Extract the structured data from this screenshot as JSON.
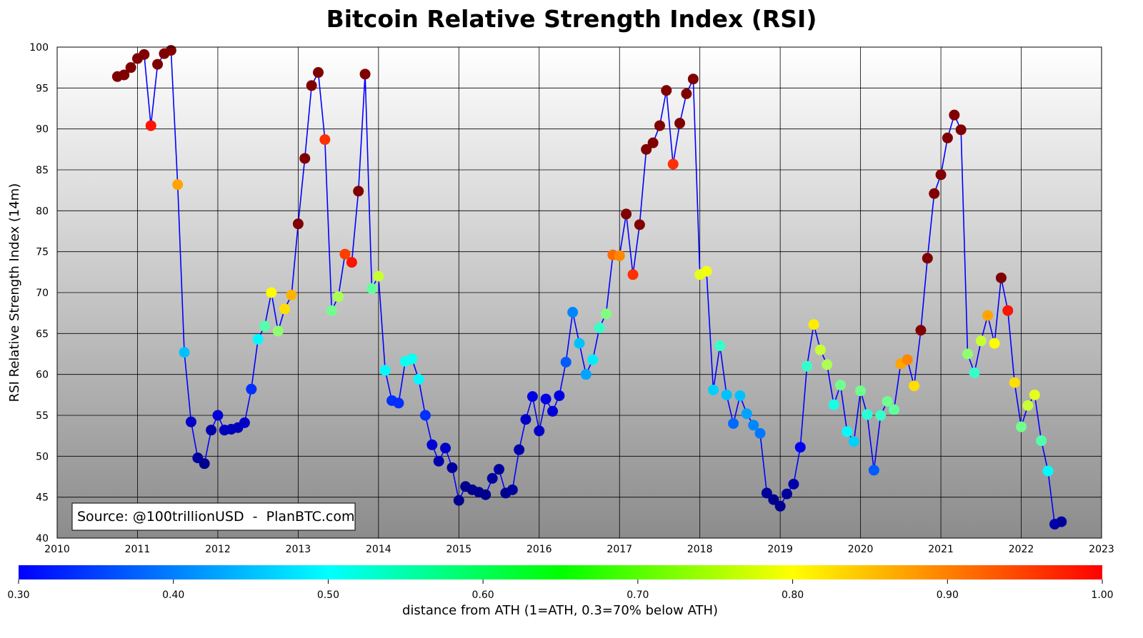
{
  "chart_data": {
    "type": "scatter",
    "title": "Bitcoin Relative Strength Index (RSI)",
    "ylabel": "RSI Relative Strength Index (14m)",
    "xlabel": "",
    "xlim": [
      2010,
      2023
    ],
    "ylim": [
      40,
      100
    ],
    "x_ticks": [
      "2010",
      "2011",
      "2012",
      "2013",
      "2014",
      "2015",
      "2016",
      "2017",
      "2018",
      "2019",
      "2020",
      "2021",
      "2022",
      "2023"
    ],
    "y_ticks": [
      "40",
      "45",
      "50",
      "55",
      "60",
      "65",
      "70",
      "75",
      "80",
      "85",
      "90",
      "95",
      "100"
    ],
    "grid": true,
    "line_color": "#0000ff",
    "annotation": "Source: @100trillionUSD  -  PlanBTC.com",
    "colorbar": {
      "label": "distance from ATH (1=ATH, 0.3=70% below ATH)",
      "range": [
        0.3,
        1.0
      ],
      "ticks": [
        "0.30",
        "0.40",
        "0.50",
        "0.60",
        "0.70",
        "0.80",
        "0.90",
        "1.00"
      ],
      "colormap": "jet"
    },
    "series": [
      {
        "points": [
          {
            "x": 2010.75,
            "y": 96.4,
            "c": 1.0
          },
          {
            "x": 2010.833,
            "y": 96.6,
            "c": 1.0
          },
          {
            "x": 2010.917,
            "y": 97.5,
            "c": 1.0
          },
          {
            "x": 2011.0,
            "y": 98.6,
            "c": 1.0
          },
          {
            "x": 2011.083,
            "y": 99.1,
            "c": 1.0
          },
          {
            "x": 2011.167,
            "y": 90.4,
            "c": 0.9
          },
          {
            "x": 2011.25,
            "y": 97.9,
            "c": 1.0
          },
          {
            "x": 2011.333,
            "y": 99.2,
            "c": 1.0
          },
          {
            "x": 2011.417,
            "y": 99.6,
            "c": 1.0
          },
          {
            "x": 2011.5,
            "y": 83.2,
            "c": 0.8
          },
          {
            "x": 2011.583,
            "y": 62.7,
            "c": 0.52
          },
          {
            "x": 2011.667,
            "y": 54.2,
            "c": 0.35
          },
          {
            "x": 2011.75,
            "y": 49.8,
            "c": 0.32
          },
          {
            "x": 2011.833,
            "y": 49.1,
            "c": 0.31
          },
          {
            "x": 2011.917,
            "y": 53.2,
            "c": 0.33
          },
          {
            "x": 2012.0,
            "y": 55.0,
            "c": 0.36
          },
          {
            "x": 2012.083,
            "y": 53.2,
            "c": 0.34
          },
          {
            "x": 2012.167,
            "y": 53.3,
            "c": 0.34
          },
          {
            "x": 2012.25,
            "y": 53.5,
            "c": 0.34
          },
          {
            "x": 2012.333,
            "y": 54.1,
            "c": 0.35
          },
          {
            "x": 2012.417,
            "y": 58.2,
            "c": 0.42
          },
          {
            "x": 2012.5,
            "y": 64.3,
            "c": 0.56
          },
          {
            "x": 2012.583,
            "y": 65.9,
            "c": 0.62
          },
          {
            "x": 2012.667,
            "y": 70.0,
            "c": 0.74
          },
          {
            "x": 2012.75,
            "y": 65.3,
            "c": 0.66
          },
          {
            "x": 2012.833,
            "y": 68.0,
            "c": 0.76
          },
          {
            "x": 2012.917,
            "y": 69.7,
            "c": 0.79
          },
          {
            "x": 2013.0,
            "y": 78.4,
            "c": 1.0
          },
          {
            "x": 2013.083,
            "y": 86.4,
            "c": 1.0
          },
          {
            "x": 2013.167,
            "y": 95.3,
            "c": 1.0
          },
          {
            "x": 2013.25,
            "y": 96.9,
            "c": 1.0
          },
          {
            "x": 2013.333,
            "y": 88.7,
            "c": 0.88
          },
          {
            "x": 2013.417,
            "y": 67.8,
            "c": 0.64
          },
          {
            "x": 2013.5,
            "y": 69.5,
            "c": 0.68
          },
          {
            "x": 2013.583,
            "y": 74.7,
            "c": 0.87
          },
          {
            "x": 2013.667,
            "y": 73.7,
            "c": 0.9
          },
          {
            "x": 2013.75,
            "y": 82.4,
            "c": 1.0
          },
          {
            "x": 2013.833,
            "y": 96.7,
            "c": 1.0
          },
          {
            "x": 2013.917,
            "y": 70.5,
            "c": 0.63
          },
          {
            "x": 2014.0,
            "y": 72.0,
            "c": 0.7
          },
          {
            "x": 2014.083,
            "y": 60.5,
            "c": 0.56
          },
          {
            "x": 2014.167,
            "y": 56.8,
            "c": 0.42
          },
          {
            "x": 2014.25,
            "y": 56.5,
            "c": 0.42
          },
          {
            "x": 2014.333,
            "y": 61.6,
            "c": 0.57
          },
          {
            "x": 2014.417,
            "y": 61.9,
            "c": 0.57
          },
          {
            "x": 2014.5,
            "y": 59.4,
            "c": 0.56
          },
          {
            "x": 2014.583,
            "y": 55.0,
            "c": 0.42
          },
          {
            "x": 2014.667,
            "y": 51.4,
            "c": 0.36
          },
          {
            "x": 2014.75,
            "y": 49.4,
            "c": 0.33
          },
          {
            "x": 2014.833,
            "y": 51.0,
            "c": 0.35
          },
          {
            "x": 2014.917,
            "y": 48.6,
            "c": 0.32
          },
          {
            "x": 2015.0,
            "y": 44.6,
            "c": 0.31
          },
          {
            "x": 2015.083,
            "y": 46.3,
            "c": 0.31
          },
          {
            "x": 2015.167,
            "y": 45.9,
            "c": 0.31
          },
          {
            "x": 2015.25,
            "y": 45.6,
            "c": 0.31
          },
          {
            "x": 2015.333,
            "y": 45.3,
            "c": 0.31
          },
          {
            "x": 2015.417,
            "y": 47.3,
            "c": 0.32
          },
          {
            "x": 2015.5,
            "y": 48.4,
            "c": 0.32
          },
          {
            "x": 2015.583,
            "y": 45.5,
            "c": 0.31
          },
          {
            "x": 2015.667,
            "y": 45.9,
            "c": 0.32
          },
          {
            "x": 2015.75,
            "y": 50.8,
            "c": 0.33
          },
          {
            "x": 2015.833,
            "y": 54.5,
            "c": 0.35
          },
          {
            "x": 2015.917,
            "y": 57.3,
            "c": 0.37
          },
          {
            "x": 2016.0,
            "y": 53.1,
            "c": 0.35
          },
          {
            "x": 2016.083,
            "y": 57.0,
            "c": 0.37
          },
          {
            "x": 2016.167,
            "y": 55.5,
            "c": 0.36
          },
          {
            "x": 2016.25,
            "y": 57.4,
            "c": 0.37
          },
          {
            "x": 2016.333,
            "y": 61.5,
            "c": 0.45
          },
          {
            "x": 2016.417,
            "y": 67.6,
            "c": 0.48
          },
          {
            "x": 2016.5,
            "y": 63.8,
            "c": 0.52
          },
          {
            "x": 2016.583,
            "y": 60.0,
            "c": 0.5
          },
          {
            "x": 2016.667,
            "y": 61.8,
            "c": 0.55
          },
          {
            "x": 2016.75,
            "y": 65.7,
            "c": 0.6
          },
          {
            "x": 2016.833,
            "y": 67.4,
            "c": 0.65
          },
          {
            "x": 2016.917,
            "y": 74.6,
            "c": 0.84
          },
          {
            "x": 2017.0,
            "y": 74.5,
            "c": 0.82
          },
          {
            "x": 2017.083,
            "y": 79.6,
            "c": 1.0
          },
          {
            "x": 2017.167,
            "y": 72.2,
            "c": 0.88
          },
          {
            "x": 2017.25,
            "y": 78.3,
            "c": 1.0
          },
          {
            "x": 2017.333,
            "y": 87.5,
            "c": 1.0
          },
          {
            "x": 2017.417,
            "y": 88.3,
            "c": 1.0
          },
          {
            "x": 2017.5,
            "y": 90.4,
            "c": 1.0
          },
          {
            "x": 2017.583,
            "y": 94.7,
            "c": 1.0
          },
          {
            "x": 2017.667,
            "y": 85.7,
            "c": 0.88
          },
          {
            "x": 2017.75,
            "y": 90.7,
            "c": 1.0
          },
          {
            "x": 2017.833,
            "y": 94.3,
            "c": 1.0
          },
          {
            "x": 2017.917,
            "y": 96.1,
            "c": 1.0
          },
          {
            "x": 2018.0,
            "y": 72.2,
            "c": 0.72
          },
          {
            "x": 2018.083,
            "y": 72.6,
            "c": 0.73
          },
          {
            "x": 2018.167,
            "y": 58.1,
            "c": 0.53
          },
          {
            "x": 2018.25,
            "y": 63.5,
            "c": 0.6
          },
          {
            "x": 2018.333,
            "y": 57.5,
            "c": 0.52
          },
          {
            "x": 2018.417,
            "y": 54.0,
            "c": 0.46
          },
          {
            "x": 2018.5,
            "y": 57.4,
            "c": 0.52
          },
          {
            "x": 2018.583,
            "y": 55.2,
            "c": 0.5
          },
          {
            "x": 2018.667,
            "y": 53.8,
            "c": 0.48
          },
          {
            "x": 2018.75,
            "y": 52.8,
            "c": 0.47
          },
          {
            "x": 2018.833,
            "y": 45.5,
            "c": 0.32
          },
          {
            "x": 2018.917,
            "y": 44.7,
            "c": 0.31
          },
          {
            "x": 2019.0,
            "y": 43.9,
            "c": 0.31
          },
          {
            "x": 2019.083,
            "y": 45.4,
            "c": 0.32
          },
          {
            "x": 2019.167,
            "y": 46.6,
            "c": 0.33
          },
          {
            "x": 2019.25,
            "y": 51.1,
            "c": 0.38
          },
          {
            "x": 2019.333,
            "y": 61.0,
            "c": 0.6
          },
          {
            "x": 2019.417,
            "y": 66.1,
            "c": 0.75
          },
          {
            "x": 2019.5,
            "y": 63.0,
            "c": 0.7
          },
          {
            "x": 2019.583,
            "y": 61.2,
            "c": 0.68
          },
          {
            "x": 2019.667,
            "y": 56.3,
            "c": 0.58
          },
          {
            "x": 2019.75,
            "y": 58.7,
            "c": 0.64
          },
          {
            "x": 2019.833,
            "y": 53.0,
            "c": 0.56
          },
          {
            "x": 2019.917,
            "y": 51.8,
            "c": 0.53
          },
          {
            "x": 2020.0,
            "y": 58.0,
            "c": 0.64
          },
          {
            "x": 2020.083,
            "y": 55.1,
            "c": 0.59
          },
          {
            "x": 2020.167,
            "y": 48.3,
            "c": 0.45
          },
          {
            "x": 2020.25,
            "y": 55.0,
            "c": 0.6
          },
          {
            "x": 2020.333,
            "y": 56.7,
            "c": 0.64
          },
          {
            "x": 2020.417,
            "y": 55.7,
            "c": 0.63
          },
          {
            "x": 2020.5,
            "y": 61.3,
            "c": 0.8
          },
          {
            "x": 2020.583,
            "y": 61.8,
            "c": 0.82
          },
          {
            "x": 2020.667,
            "y": 58.6,
            "c": 0.76
          },
          {
            "x": 2020.75,
            "y": 65.4,
            "c": 1.0
          },
          {
            "x": 2020.833,
            "y": 74.2,
            "c": 1.0
          },
          {
            "x": 2020.917,
            "y": 82.1,
            "c": 1.0
          },
          {
            "x": 2021.0,
            "y": 84.4,
            "c": 1.0
          },
          {
            "x": 2021.083,
            "y": 88.9,
            "c": 1.0
          },
          {
            "x": 2021.167,
            "y": 91.7,
            "c": 1.0
          },
          {
            "x": 2021.25,
            "y": 89.9,
            "c": 1.0
          },
          {
            "x": 2021.333,
            "y": 62.5,
            "c": 0.66
          },
          {
            "x": 2021.417,
            "y": 60.2,
            "c": 0.6
          },
          {
            "x": 2021.5,
            "y": 64.1,
            "c": 0.7
          },
          {
            "x": 2021.583,
            "y": 67.2,
            "c": 0.8
          },
          {
            "x": 2021.667,
            "y": 63.8,
            "c": 0.74
          },
          {
            "x": 2021.75,
            "y": 71.8,
            "c": 1.0
          },
          {
            "x": 2021.833,
            "y": 67.8,
            "c": 0.9
          },
          {
            "x": 2021.917,
            "y": 59.0,
            "c": 0.76
          },
          {
            "x": 2022.0,
            "y": 53.6,
            "c": 0.64
          },
          {
            "x": 2022.083,
            "y": 56.2,
            "c": 0.7
          },
          {
            "x": 2022.167,
            "y": 57.5,
            "c": 0.72
          },
          {
            "x": 2022.25,
            "y": 51.9,
            "c": 0.62
          },
          {
            "x": 2022.333,
            "y": 48.2,
            "c": 0.56
          },
          {
            "x": 2022.417,
            "y": 41.7,
            "c": 0.33
          },
          {
            "x": 2022.5,
            "y": 42.0,
            "c": 0.32
          }
        ]
      }
    ]
  }
}
